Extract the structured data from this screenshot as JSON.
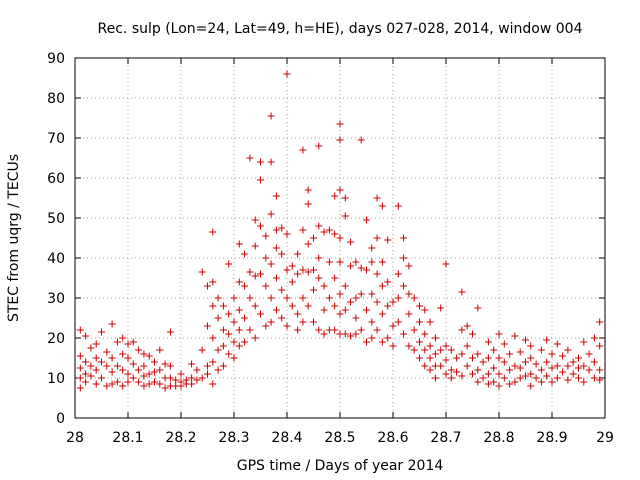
{
  "chart_data": {
    "type": "scatter",
    "title": "Rec. sulp (Lon=24, Lat=49, h=HE), days 027-028, 2014, window 004",
    "xlabel": "GPS time / Days of year 2014",
    "ylabel": "STEC from uqrg / TECUs",
    "xlim": [
      28,
      29
    ],
    "ylim": [
      0,
      90
    ],
    "xticks": [
      28,
      28.1,
      28.2,
      28.3,
      28.4,
      28.5,
      28.6,
      28.7,
      28.8,
      28.9,
      29
    ],
    "xtick_labels": [
      "28",
      "28.1",
      "28.2",
      "28.3",
      "28.4",
      "28.5",
      "28.6",
      "28.7",
      "28.8",
      "28.9",
      "29"
    ],
    "yticks": [
      0,
      10,
      20,
      30,
      40,
      50,
      60,
      70,
      80,
      90
    ],
    "ytick_labels": [
      "0",
      "10",
      "20",
      "30",
      "40",
      "50",
      "60",
      "70",
      "80",
      "90"
    ],
    "grid": true,
    "marker": "+",
    "color": "#cc0000",
    "points": [
      [
        28.01,
        22
      ],
      [
        28.01,
        15.5
      ],
      [
        28.01,
        12.5
      ],
      [
        28.01,
        10
      ],
      [
        28.01,
        7.5
      ],
      [
        28.02,
        20.5
      ],
      [
        28.02,
        14
      ],
      [
        28.02,
        11
      ],
      [
        28.02,
        9
      ],
      [
        28.03,
        17.5
      ],
      [
        28.03,
        13
      ],
      [
        28.03,
        10.5
      ],
      [
        28.04,
        18.5
      ],
      [
        28.04,
        15
      ],
      [
        28.04,
        12
      ],
      [
        28.04,
        8.5
      ],
      [
        28.05,
        21.5
      ],
      [
        28.05,
        14
      ],
      [
        28.05,
        10
      ],
      [
        28.06,
        16.5
      ],
      [
        28.06,
        13
      ],
      [
        28.06,
        8
      ],
      [
        28.07,
        23.5
      ],
      [
        28.07,
        15
      ],
      [
        28.07,
        11.5
      ],
      [
        28.07,
        8.5
      ],
      [
        28.08,
        19
      ],
      [
        28.08,
        13
      ],
      [
        28.08,
        9
      ],
      [
        28.09,
        20
      ],
      [
        28.09,
        16
      ],
      [
        28.09,
        12
      ],
      [
        28.09,
        8
      ],
      [
        28.1,
        18.5
      ],
      [
        28.1,
        15
      ],
      [
        28.1,
        11
      ],
      [
        28.1,
        9
      ],
      [
        28.11,
        19
      ],
      [
        28.11,
        13.5
      ],
      [
        28.11,
        10
      ],
      [
        28.12,
        17
      ],
      [
        28.12,
        12
      ],
      [
        28.12,
        9
      ],
      [
        28.13,
        16
      ],
      [
        28.13,
        13
      ],
      [
        28.13,
        10.5
      ],
      [
        28.13,
        8
      ],
      [
        28.14,
        15.5
      ],
      [
        28.14,
        11
      ],
      [
        28.14,
        8.5
      ],
      [
        28.15,
        14
      ],
      [
        28.15,
        11.5
      ],
      [
        28.15,
        9
      ],
      [
        28.16,
        17
      ],
      [
        28.16,
        12
      ],
      [
        28.16,
        8.5
      ],
      [
        28.17,
        13.5
      ],
      [
        28.17,
        10
      ],
      [
        28.17,
        7.5
      ],
      [
        28.18,
        21.5
      ],
      [
        28.18,
        13
      ],
      [
        28.18,
        10
      ],
      [
        28.18,
        8
      ],
      [
        28.19,
        9.5
      ],
      [
        28.19,
        8
      ],
      [
        28.2,
        11
      ],
      [
        28.2,
        9
      ],
      [
        28.2,
        8
      ],
      [
        28.21,
        9.5
      ],
      [
        28.21,
        8.5
      ],
      [
        28.22,
        13.5
      ],
      [
        28.22,
        10
      ],
      [
        28.22,
        8.5
      ],
      [
        28.23,
        12
      ],
      [
        28.23,
        9.5
      ],
      [
        28.24,
        36.5
      ],
      [
        28.24,
        17
      ],
      [
        28.24,
        10
      ],
      [
        28.25,
        33
      ],
      [
        28.25,
        23
      ],
      [
        28.25,
        13
      ],
      [
        28.25,
        11
      ],
      [
        28.26,
        46.5
      ],
      [
        28.26,
        34
      ],
      [
        28.26,
        28
      ],
      [
        28.26,
        20
      ],
      [
        28.26,
        14
      ],
      [
        28.26,
        8.5
      ],
      [
        28.27,
        30
      ],
      [
        28.27,
        25
      ],
      [
        28.27,
        17
      ],
      [
        28.27,
        12
      ],
      [
        28.28,
        28
      ],
      [
        28.28,
        22
      ],
      [
        28.28,
        18
      ],
      [
        28.28,
        13
      ],
      [
        28.29,
        38.5
      ],
      [
        28.29,
        26
      ],
      [
        28.29,
        21
      ],
      [
        28.29,
        16
      ],
      [
        28.3,
        30
      ],
      [
        28.3,
        24
      ],
      [
        28.3,
        19
      ],
      [
        28.3,
        15
      ],
      [
        28.31,
        43.5
      ],
      [
        28.31,
        34
      ],
      [
        28.31,
        27
      ],
      [
        28.31,
        22
      ],
      [
        28.31,
        18
      ],
      [
        28.32,
        41
      ],
      [
        28.32,
        33
      ],
      [
        28.32,
        25
      ],
      [
        28.32,
        19
      ],
      [
        28.33,
        65
      ],
      [
        28.33,
        36.5
      ],
      [
        28.33,
        30
      ],
      [
        28.33,
        22
      ],
      [
        28.34,
        49.5
      ],
      [
        28.34,
        43
      ],
      [
        28.34,
        35.5
      ],
      [
        28.34,
        28
      ],
      [
        28.34,
        20
      ],
      [
        28.35,
        59.5
      ],
      [
        28.35,
        64
      ],
      [
        28.35,
        48
      ],
      [
        28.35,
        36
      ],
      [
        28.35,
        26
      ],
      [
        28.36,
        45.5
      ],
      [
        28.36,
        40
      ],
      [
        28.36,
        33
      ],
      [
        28.36,
        23
      ],
      [
        28.37,
        75.5
      ],
      [
        28.37,
        64
      ],
      [
        28.37,
        51
      ],
      [
        28.37,
        38.5
      ],
      [
        28.37,
        30
      ],
      [
        28.37,
        24
      ],
      [
        28.38,
        55.5
      ],
      [
        28.38,
        47
      ],
      [
        28.38,
        42.5
      ],
      [
        28.38,
        35
      ],
      [
        28.38,
        27
      ],
      [
        28.39,
        47.5
      ],
      [
        28.39,
        41
      ],
      [
        28.39,
        32
      ],
      [
        28.39,
        25
      ],
      [
        28.4,
        86
      ],
      [
        28.4,
        46
      ],
      [
        28.4,
        37
      ],
      [
        28.4,
        30
      ],
      [
        28.4,
        23
      ],
      [
        28.41,
        38
      ],
      [
        28.41,
        34
      ],
      [
        28.41,
        28
      ],
      [
        28.42,
        41
      ],
      [
        28.42,
        36
      ],
      [
        28.42,
        26
      ],
      [
        28.42,
        22
      ],
      [
        28.43,
        67
      ],
      [
        28.43,
        47
      ],
      [
        28.43,
        37
      ],
      [
        28.43,
        30
      ],
      [
        28.43,
        24
      ],
      [
        28.44,
        57
      ],
      [
        28.44,
        53.5
      ],
      [
        28.44,
        43.5
      ],
      [
        28.44,
        36.5
      ],
      [
        28.44,
        28
      ],
      [
        28.45,
        45
      ],
      [
        28.45,
        37
      ],
      [
        28.45,
        32
      ],
      [
        28.45,
        24
      ],
      [
        28.46,
        68
      ],
      [
        28.46,
        48
      ],
      [
        28.46,
        40
      ],
      [
        28.46,
        35
      ],
      [
        28.46,
        22
      ],
      [
        28.47,
        46.5
      ],
      [
        28.47,
        33
      ],
      [
        28.47,
        27
      ],
      [
        28.47,
        21
      ],
      [
        28.48,
        47
      ],
      [
        28.48,
        39
      ],
      [
        28.48,
        30
      ],
      [
        28.48,
        22
      ],
      [
        28.49,
        55.5
      ],
      [
        28.49,
        46
      ],
      [
        28.49,
        35
      ],
      [
        28.49,
        28
      ],
      [
        28.49,
        22
      ],
      [
        28.5,
        73.5
      ],
      [
        28.5,
        69.5
      ],
      [
        28.5,
        57
      ],
      [
        28.5,
        45
      ],
      [
        28.5,
        39
      ],
      [
        28.5,
        31
      ],
      [
        28.5,
        26
      ],
      [
        28.5,
        21
      ],
      [
        28.51,
        55
      ],
      [
        28.51,
        50.5
      ],
      [
        28.51,
        33
      ],
      [
        28.51,
        27
      ],
      [
        28.51,
        21
      ],
      [
        28.52,
        44
      ],
      [
        28.52,
        38
      ],
      [
        28.52,
        29
      ],
      [
        28.52,
        20.5
      ],
      [
        28.53,
        39
      ],
      [
        28.53,
        30
      ],
      [
        28.53,
        25
      ],
      [
        28.53,
        21
      ],
      [
        28.54,
        69.5
      ],
      [
        28.54,
        37.5
      ],
      [
        28.54,
        31
      ],
      [
        28.54,
        22
      ],
      [
        28.55,
        49.5
      ],
      [
        28.55,
        37
      ],
      [
        28.55,
        27
      ],
      [
        28.55,
        19
      ],
      [
        28.56,
        42.5
      ],
      [
        28.56,
        39
      ],
      [
        28.56,
        31
      ],
      [
        28.56,
        24
      ],
      [
        28.56,
        20
      ],
      [
        28.57,
        55
      ],
      [
        28.57,
        45
      ],
      [
        28.57,
        36
      ],
      [
        28.57,
        29
      ],
      [
        28.57,
        22
      ],
      [
        28.58,
        53
      ],
      [
        28.58,
        39
      ],
      [
        28.58,
        33
      ],
      [
        28.58,
        26
      ],
      [
        28.58,
        19
      ],
      [
        28.59,
        44.5
      ],
      [
        28.59,
        34
      ],
      [
        28.59,
        28
      ],
      [
        28.59,
        20
      ],
      [
        28.6,
        29
      ],
      [
        28.6,
        23
      ],
      [
        28.6,
        18
      ],
      [
        28.61,
        53
      ],
      [
        28.61,
        36
      ],
      [
        28.61,
        30
      ],
      [
        28.61,
        24
      ],
      [
        28.62,
        45
      ],
      [
        28.62,
        40
      ],
      [
        28.62,
        33
      ],
      [
        28.62,
        21
      ],
      [
        28.63,
        38
      ],
      [
        28.63,
        31
      ],
      [
        28.63,
        26
      ],
      [
        28.63,
        18
      ],
      [
        28.64,
        30
      ],
      [
        28.64,
        22
      ],
      [
        28.64,
        17
      ],
      [
        28.65,
        28
      ],
      [
        28.65,
        24
      ],
      [
        28.65,
        19
      ],
      [
        28.65,
        15
      ],
      [
        28.66,
        27
      ],
      [
        28.66,
        21
      ],
      [
        28.66,
        17
      ],
      [
        28.66,
        13
      ],
      [
        28.67,
        24
      ],
      [
        28.67,
        18
      ],
      [
        28.67,
        15
      ],
      [
        28.67,
        12
      ],
      [
        28.68,
        20
      ],
      [
        28.68,
        16
      ],
      [
        28.68,
        13
      ],
      [
        28.68,
        10
      ],
      [
        28.69,
        27.5
      ],
      [
        28.69,
        17
      ],
      [
        28.69,
        13
      ],
      [
        28.7,
        38.5
      ],
      [
        28.7,
        18
      ],
      [
        28.7,
        14.5
      ],
      [
        28.7,
        11
      ],
      [
        28.71,
        17
      ],
      [
        28.71,
        12
      ],
      [
        28.71,
        10
      ],
      [
        28.72,
        15
      ],
      [
        28.72,
        11.5
      ],
      [
        28.73,
        31.5
      ],
      [
        28.73,
        22
      ],
      [
        28.73,
        16
      ],
      [
        28.73,
        10.5
      ],
      [
        28.74,
        23
      ],
      [
        28.74,
        18
      ],
      [
        28.74,
        13
      ],
      [
        28.75,
        21
      ],
      [
        28.75,
        15
      ],
      [
        28.75,
        11
      ],
      [
        28.76,
        27.5
      ],
      [
        28.76,
        16
      ],
      [
        28.76,
        12
      ],
      [
        28.76,
        9
      ],
      [
        28.77,
        14
      ],
      [
        28.77,
        10
      ],
      [
        28.78,
        19
      ],
      [
        28.78,
        15
      ],
      [
        28.78,
        11
      ],
      [
        28.78,
        8.5
      ],
      [
        28.79,
        17
      ],
      [
        28.79,
        12.5
      ],
      [
        28.79,
        9
      ],
      [
        28.8,
        21
      ],
      [
        28.8,
        15
      ],
      [
        28.8,
        11
      ],
      [
        28.8,
        8
      ],
      [
        28.81,
        18.5
      ],
      [
        28.81,
        14
      ],
      [
        28.81,
        10
      ],
      [
        28.82,
        16
      ],
      [
        28.82,
        12
      ],
      [
        28.82,
        8.5
      ],
      [
        28.83,
        20.5
      ],
      [
        28.83,
        13
      ],
      [
        28.83,
        9
      ],
      [
        28.84,
        16.5
      ],
      [
        28.84,
        12.5
      ],
      [
        28.84,
        10
      ],
      [
        28.85,
        19.5
      ],
      [
        28.85,
        14
      ],
      [
        28.85,
        10.5
      ],
      [
        28.86,
        18
      ],
      [
        28.86,
        15
      ],
      [
        28.86,
        11
      ],
      [
        28.86,
        8
      ],
      [
        28.87,
        13.5
      ],
      [
        28.87,
        10
      ],
      [
        28.88,
        17
      ],
      [
        28.88,
        12
      ],
      [
        28.88,
        9
      ],
      [
        28.89,
        19.5
      ],
      [
        28.89,
        14
      ],
      [
        28.89,
        10.5
      ],
      [
        28.9,
        16
      ],
      [
        28.9,
        12.5
      ],
      [
        28.9,
        9
      ],
      [
        28.91,
        18.5
      ],
      [
        28.91,
        13
      ],
      [
        28.91,
        10
      ],
      [
        28.92,
        15.5
      ],
      [
        28.92,
        11.5
      ],
      [
        28.93,
        17
      ],
      [
        28.93,
        13
      ],
      [
        28.93,
        9.5
      ],
      [
        28.94,
        14
      ],
      [
        28.94,
        11
      ],
      [
        28.95,
        15
      ],
      [
        28.95,
        12.5
      ],
      [
        28.95,
        10
      ],
      [
        28.96,
        19
      ],
      [
        28.96,
        13
      ],
      [
        28.96,
        9
      ],
      [
        28.97,
        16
      ],
      [
        28.97,
        12
      ],
      [
        28.98,
        20
      ],
      [
        28.98,
        14
      ],
      [
        28.98,
        10
      ],
      [
        28.99,
        24
      ],
      [
        28.99,
        18
      ],
      [
        28.99,
        12
      ],
      [
        28.99,
        9.5
      ]
    ]
  }
}
